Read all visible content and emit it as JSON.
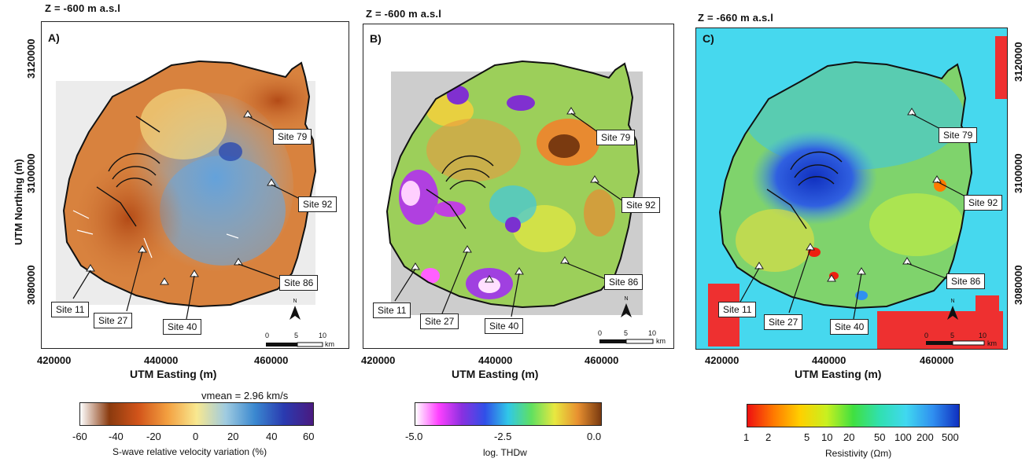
{
  "panels": [
    {
      "z_label": "Z = -600 m a.s.l",
      "letter": "A)",
      "base_color": "#d8823e",
      "x_ticks": [
        "420000",
        "440000",
        "460000"
      ],
      "x_title": "UTM Easting (m)",
      "y_ticks": [
        "3120000",
        "3100000",
        "3080000"
      ],
      "y_title": "UTM Northing (m)",
      "sites": [
        "Site 79",
        "Site 92",
        "Site 86",
        "Site 11",
        "Site 27",
        "Site 40"
      ],
      "scale": {
        "t0": "0",
        "t5": "5",
        "t10": "10",
        "unit": "km"
      },
      "north": "N"
    },
    {
      "z_label": "Z = -600 m a.s.l",
      "letter": "B)",
      "base_color": "#9ccf5a",
      "x_ticks": [
        "420000",
        "440000",
        "460000"
      ],
      "x_title": "UTM Easting (m)",
      "sites": [
        "Site 79",
        "Site 92",
        "Site 86",
        "Site 11",
        "Site 27",
        "Site 40"
      ],
      "scale": {
        "t0": "0",
        "t5": "5",
        "t10": "10",
        "unit": "km"
      },
      "north": "N"
    },
    {
      "z_label": "Z = -660 m a.s.l",
      "letter": "C)",
      "base_color": "#7fd36c",
      "x_ticks": [
        "420000",
        "440000",
        "460000"
      ],
      "x_title": "UTM Easting (m)",
      "y_ticks": [
        "3120000",
        "3100000",
        "3080000"
      ],
      "y_title": "UTM Northing (m)",
      "sites": [
        "Site 79",
        "Site 92",
        "Site 86",
        "Site 11",
        "Site 27",
        "Site 40"
      ],
      "scale": {
        "t0": "0",
        "t5": "5",
        "t10": "10",
        "unit": "km"
      },
      "north": "N"
    }
  ],
  "colorbars": [
    {
      "vmean": "vmean = 2.96 km/s",
      "ticks": [
        "-60",
        "-40",
        "-20",
        "0",
        "20",
        "40",
        "60"
      ],
      "title": "S-wave relative velocity variation (%)",
      "colors": [
        "#ffffff",
        "#8a3a0e",
        "#d2541a",
        "#f3a040",
        "#f8e890",
        "#9fcbe0",
        "#3a88d0",
        "#2a3ab0",
        "#4a1a80"
      ]
    },
    {
      "ticks": [
        "-5.0",
        "-2.5",
        "0.0"
      ],
      "title": "log. THDw",
      "colors": [
        "#ffffff",
        "#ff40ff",
        "#8a30e0",
        "#3050e8",
        "#30c8e8",
        "#60e060",
        "#e8e840",
        "#e89030",
        "#7a3a10"
      ]
    },
    {
      "ticks": [
        "1",
        "2",
        "5",
        "10",
        "20",
        "50",
        "100",
        "200",
        "500"
      ],
      "title": "Resistivity (Ωm)",
      "colors": [
        "#ee1010",
        "#ff7a00",
        "#ffd000",
        "#c8f020",
        "#40e040",
        "#30e0b0",
        "#40d8f0",
        "#3090f0",
        "#1030c0"
      ]
    }
  ]
}
